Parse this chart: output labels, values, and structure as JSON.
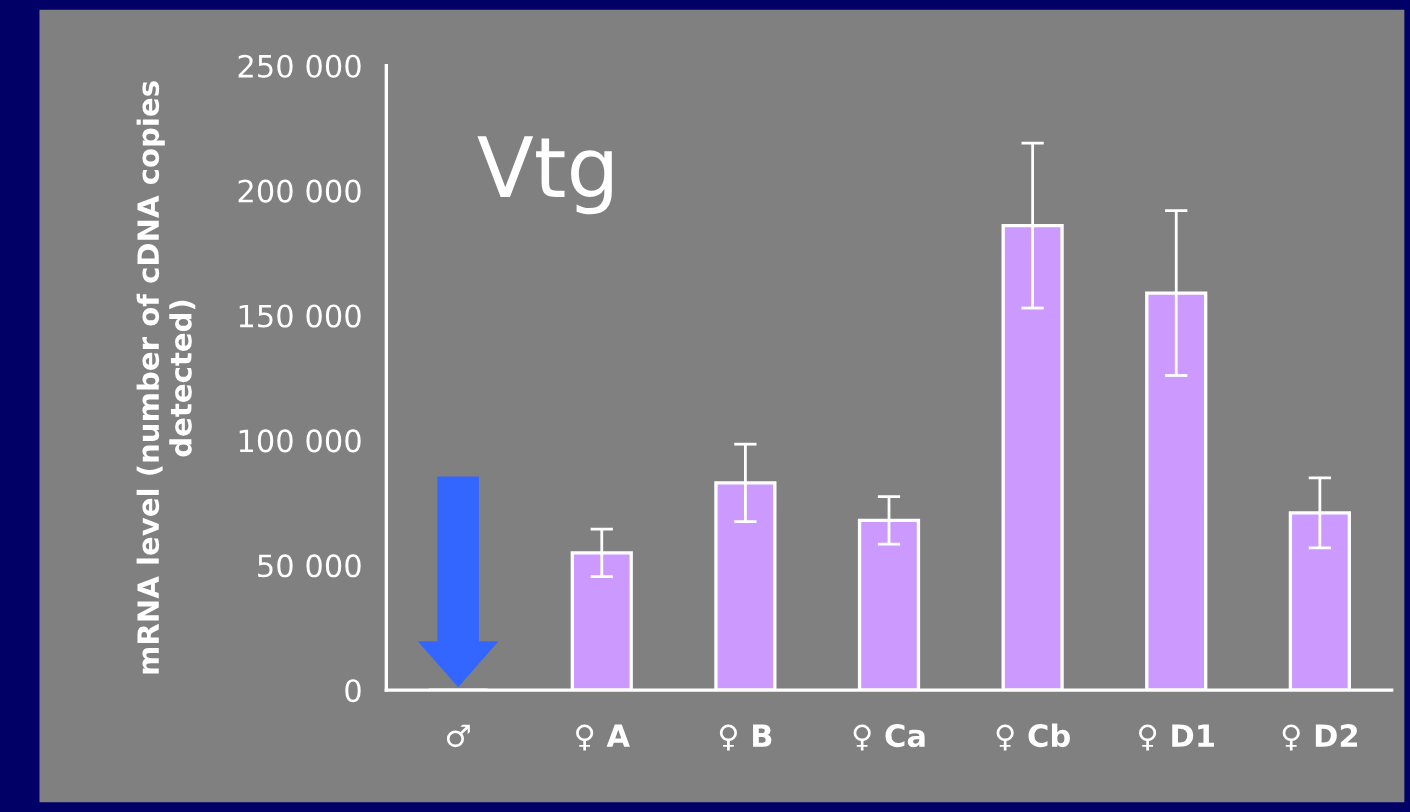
{
  "chart_data": {
    "type": "bar",
    "ylabel": "mRNA level (number of cDNA copies\ndetected)",
    "annotations": [
      "Vtg"
    ],
    "categories": [
      "♂",
      "♀ A",
      "♀ B",
      "♀ Ca",
      "♀ Cb",
      "♀ D1",
      "♀ D2"
    ],
    "values": [
      0,
      55000,
      83000,
      68000,
      186000,
      159000,
      71000
    ],
    "errors": [
      null,
      9500,
      15500,
      9500,
      33000,
      33000,
      14000
    ],
    "color": "#cc99ff",
    "ylim": [
      0,
      250000
    ],
    "yticks": [
      {
        "value": 0,
        "label": "0"
      },
      {
        "value": 50000,
        "label": "50 000"
      },
      {
        "value": 100000,
        "label": "100 000"
      },
      {
        "value": 150000,
        "label": "150 000"
      },
      {
        "value": 200000,
        "label": "200 000"
      },
      {
        "value": 250000,
        "label": "250 000"
      }
    ],
    "grid": false
  }
}
